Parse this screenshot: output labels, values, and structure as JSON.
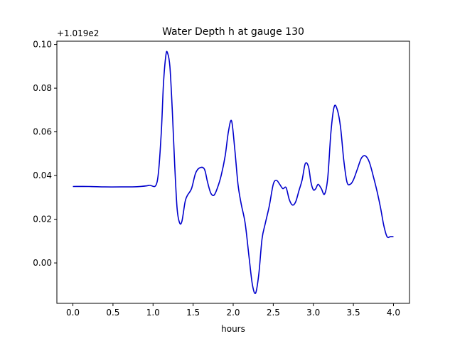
{
  "chart_data": {
    "type": "line",
    "title": "Water Depth h at gauge 130",
    "xlabel": "hours",
    "ylabel": "",
    "y_offset_label": "+1.019e2",
    "xlim": [
      -0.2,
      4.2
    ],
    "ylim": [
      -0.0185,
      0.1015
    ],
    "x_ticks": [
      0.0,
      0.5,
      1.0,
      1.5,
      2.0,
      2.5,
      3.0,
      3.5,
      4.0
    ],
    "x_tick_labels": [
      "0.0",
      "0.5",
      "1.0",
      "1.5",
      "2.0",
      "2.5",
      "3.0",
      "3.5",
      "4.0"
    ],
    "y_ticks": [
      0.0,
      0.02,
      0.04,
      0.06,
      0.08,
      0.1
    ],
    "y_tick_labels": [
      "0.00",
      "0.02",
      "0.04",
      "0.06",
      "0.08",
      "0.10"
    ],
    "grid": false,
    "line_color": "#0000cc",
    "series": [
      {
        "x": [
          0.0,
          0.2,
          0.4,
          0.6,
          0.8,
          0.95,
          1.05,
          1.1,
          1.13,
          1.16,
          1.18,
          1.21,
          1.24,
          1.27,
          1.3,
          1.33,
          1.36,
          1.4,
          1.43,
          1.48,
          1.53,
          1.58,
          1.64,
          1.68,
          1.72,
          1.76,
          1.8,
          1.85,
          1.9,
          1.94,
          1.98,
          2.02,
          2.06,
          2.1,
          2.15,
          2.2,
          2.24,
          2.28,
          2.32,
          2.36,
          2.4,
          2.45,
          2.5,
          2.54,
          2.58,
          2.62,
          2.66,
          2.7,
          2.74,
          2.78,
          2.82,
          2.86,
          2.9,
          2.94,
          2.97,
          3.0,
          3.03,
          3.06,
          3.1,
          3.14,
          3.18,
          3.22,
          3.26,
          3.3,
          3.34,
          3.38,
          3.42,
          3.46,
          3.5,
          3.55,
          3.6,
          3.65,
          3.7,
          3.76,
          3.8,
          3.84,
          3.88,
          3.92,
          3.96,
          4.0
        ],
        "y": [
          0.035,
          0.035,
          0.0348,
          0.0348,
          0.0349,
          0.0355,
          0.037,
          0.058,
          0.082,
          0.095,
          0.0962,
          0.09,
          0.07,
          0.045,
          0.025,
          0.0185,
          0.019,
          0.028,
          0.031,
          0.034,
          0.041,
          0.0435,
          0.043,
          0.037,
          0.032,
          0.031,
          0.034,
          0.04,
          0.049,
          0.06,
          0.065,
          0.052,
          0.036,
          0.027,
          0.018,
          0.002,
          -0.01,
          -0.0138,
          -0.005,
          0.011,
          0.018,
          0.026,
          0.036,
          0.0378,
          0.036,
          0.034,
          0.0345,
          0.029,
          0.0265,
          0.028,
          0.033,
          0.038,
          0.0455,
          0.044,
          0.037,
          0.0335,
          0.034,
          0.036,
          0.034,
          0.0315,
          0.039,
          0.06,
          0.0715,
          0.07,
          0.062,
          0.047,
          0.037,
          0.036,
          0.038,
          0.043,
          0.048,
          0.049,
          0.046,
          0.038,
          0.032,
          0.025,
          0.017,
          0.012,
          0.012,
          0.012
        ]
      }
    ]
  }
}
